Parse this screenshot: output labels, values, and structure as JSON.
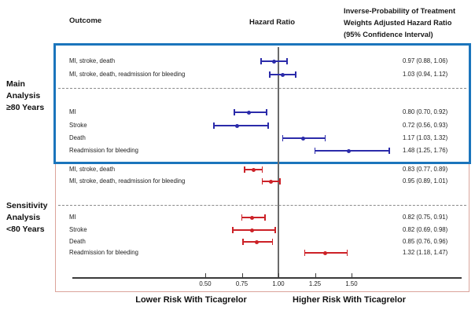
{
  "header": {
    "outcome": "Outcome",
    "hazard_ratio": "Hazard Ratio",
    "ipw_lines": [
      "Inverse-Probability of Treatment",
      "Weights Adjusted Hazard Ratio",
      "(95% Confidence Interval)"
    ]
  },
  "footer": {
    "lower": "Lower Risk With Ticagrelor",
    "higher": "Higher Risk With Ticagrelor"
  },
  "colors": {
    "main_box_border": "#1b75bc",
    "outer_border": "#dba49b",
    "reference_line": "#6a6a6a",
    "axis": "#3a3a3a",
    "main_series": "#2b2baa",
    "sensitivity_series": "#cc2127"
  },
  "chart_data": {
    "type": "scatter",
    "subtype": "forest-plot",
    "xlabel": "Hazard Ratio",
    "x_ticks": [
      "0.50",
      "0.75",
      "1.00",
      "1.25",
      "1.50"
    ],
    "xlim": [
      0.45,
      1.85
    ],
    "reference_line_x": 1.0,
    "grid": false,
    "legend_position": "none",
    "groups": [
      {
        "name": "Main Analysis ≥80 Years",
        "name_lines": [
          "Main",
          "Analysis",
          "≥80 Years"
        ],
        "color": "#2b2baa",
        "rows": [
          {
            "label": "MI, stroke,  death",
            "hr": 0.97,
            "ci_low": 0.88,
            "ci_high": 1.06,
            "ci_text": "0.97 (0.88, 1.06)"
          },
          {
            "label": "MI, stroke, death, readmission for bleeding",
            "hr": 1.03,
            "ci_low": 0.94,
            "ci_high": 1.12,
            "ci_text": "1.03 (0.94, 1.12)"
          },
          {
            "label": "MI",
            "hr": 0.8,
            "ci_low": 0.7,
            "ci_high": 0.92,
            "ci_text": "0.80 (0.70, 0.92)"
          },
          {
            "label": "Stroke",
            "hr": 0.72,
            "ci_low": 0.56,
            "ci_high": 0.93,
            "ci_text": "0.72 (0.56, 0.93)"
          },
          {
            "label": "Death",
            "hr": 1.17,
            "ci_low": 1.03,
            "ci_high": 1.32,
            "ci_text": "1.17 (1.03, 1.32)"
          },
          {
            "label": "Readmission for bleeding",
            "hr": 1.48,
            "ci_low": 1.25,
            "ci_high": 1.76,
            "ci_text": "1.48 (1.25, 1.76)"
          }
        ]
      },
      {
        "name": "Sensitivity Analysis <80 Years",
        "name_lines": [
          "Sensitivity",
          "Analysis",
          "<80 Years"
        ],
        "color": "#cc2127",
        "rows": [
          {
            "label": "MI, stroke,  death",
            "hr": 0.83,
            "ci_low": 0.77,
            "ci_high": 0.89,
            "ci_text": "0.83 (0.77, 0.89)"
          },
          {
            "label": "MI, stroke, death, readmission for bleeding",
            "hr": 0.95,
            "ci_low": 0.89,
            "ci_high": 1.01,
            "ci_text": "0.95 (0.89, 1.01)"
          },
          {
            "label": "MI",
            "hr": 0.82,
            "ci_low": 0.75,
            "ci_high": 0.91,
            "ci_text": "0.82 (0.75, 0.91)"
          },
          {
            "label": "Stroke",
            "hr": 0.82,
            "ci_low": 0.69,
            "ci_high": 0.98,
            "ci_text": "0.82 (0.69, 0.98)"
          },
          {
            "label": "Death",
            "hr": 0.85,
            "ci_low": 0.76,
            "ci_high": 0.96,
            "ci_text": "0.85 (0.76, 0.96)"
          },
          {
            "label": "Readmission for bleeding",
            "hr": 1.32,
            "ci_low": 1.18,
            "ci_high": 1.47,
            "ci_text": "1.32 (1.18, 1.47)"
          }
        ]
      }
    ]
  }
}
